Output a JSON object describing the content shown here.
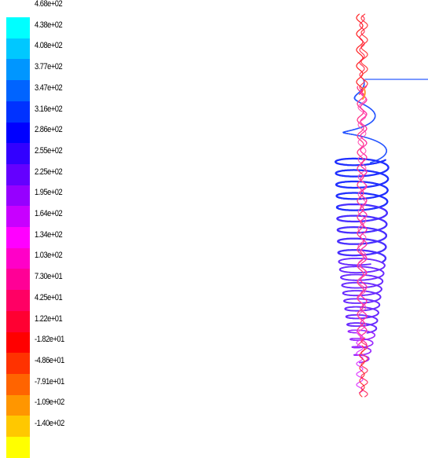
{
  "chart_data": {
    "type": "pathline",
    "title": "",
    "colorbar": {
      "tick_labels": [
        "4.68e+02",
        "4.38e+02",
        "4.08e+02",
        "3.77e+02",
        "3.47e+02",
        "3.16e+02",
        "2.86e+02",
        "2.55e+02",
        "2.25e+02",
        "1.95e+02",
        "1.64e+02",
        "1.34e+02",
        "1.03e+02",
        "7.30e+01",
        "4.25e+01",
        "1.22e+01",
        "-1.82e+01",
        "-4.86e+01",
        "-7.91e+01",
        "-1.09e+02",
        "-1.40e+02"
      ],
      "range": [
        -140,
        468
      ],
      "colors": [
        "#00ffff",
        "#00c8ff",
        "#0096ff",
        "#0064ff",
        "#0032ff",
        "#0000ff",
        "#3200ff",
        "#6400ff",
        "#9600ff",
        "#c800ff",
        "#ff00ff",
        "#ff00c8",
        "#ff0096",
        "#ff0064",
        "#ff0032",
        "#ff0000",
        "#ff3200",
        "#ff6400",
        "#ff9600",
        "#ffc800",
        "#ffff00"
      ]
    }
  }
}
